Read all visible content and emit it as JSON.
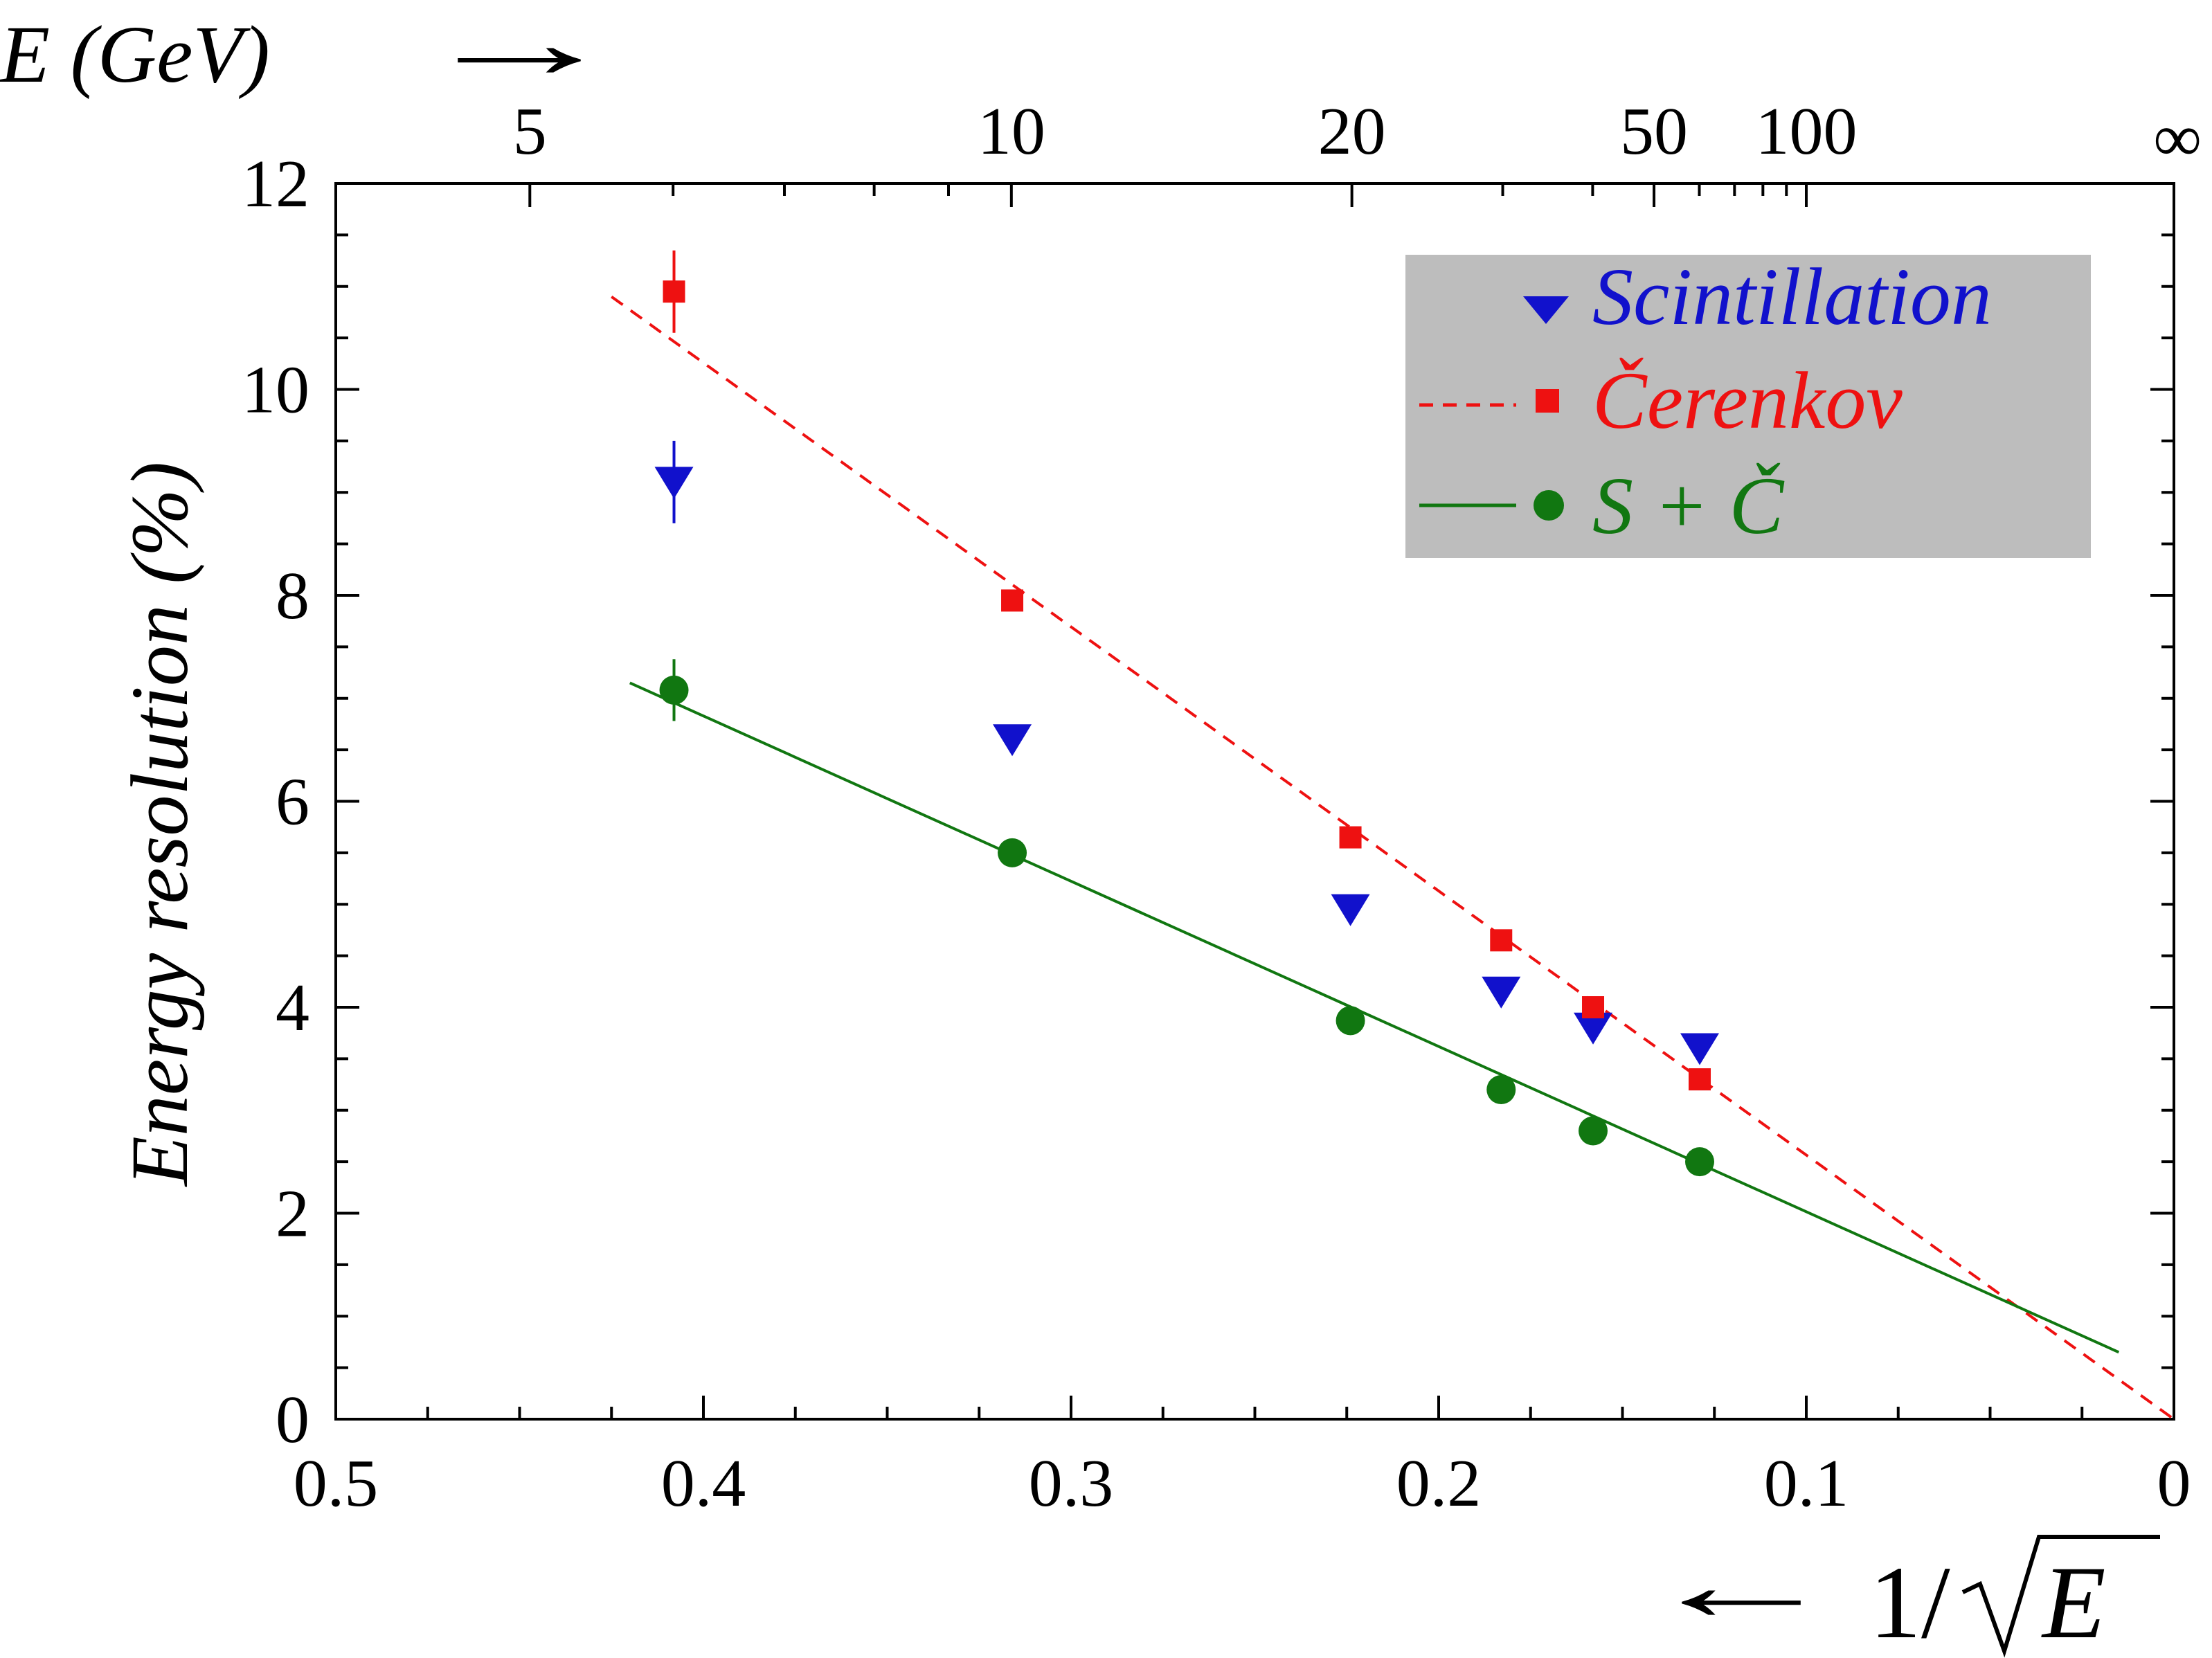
{
  "chart_data": {
    "type": "scatter",
    "title": "",
    "xlabel": "1/√E",
    "xlabel_parts": {
      "arrow": "←",
      "prefix": "1/",
      "radicand": "E"
    },
    "ylabel": "Energy resolution (%)",
    "top_axis_label": "E (GeV)",
    "top_axis_arrow": "→",
    "xlim": [
      0.5,
      0
    ],
    "ylim": [
      0,
      12
    ],
    "x_ticks": [
      0.5,
      0.4,
      0.3,
      0.2,
      0.1,
      0
    ],
    "x_tick_labels": [
      "0.5",
      "0.4",
      "0.3",
      "0.2",
      "0.1",
      "0"
    ],
    "y_ticks": [
      0,
      2,
      4,
      6,
      8,
      10,
      12
    ],
    "y_tick_labels": [
      "0",
      "2",
      "4",
      "6",
      "8",
      "10",
      "12"
    ],
    "top_ticks": [
      {
        "label": "5",
        "energy": 5
      },
      {
        "label": "10",
        "energy": 10
      },
      {
        "label": "20",
        "energy": 20
      },
      {
        "label": "50",
        "energy": 50
      },
      {
        "label": "100",
        "energy": 100
      },
      {
        "label": "∞",
        "energy": null
      }
    ],
    "top_minor_energies": [
      6,
      7,
      8,
      9,
      30,
      40,
      60,
      70,
      80,
      90
    ],
    "legend_position": "top-right",
    "series": [
      {
        "name": "Scintillation",
        "marker": "triangle-down",
        "color": "#1111cc",
        "line": null,
        "x": [
          0.408,
          0.316,
          0.224,
          0.183,
          0.158,
          0.129
        ],
        "y": [
          9.1,
          6.6,
          4.95,
          4.15,
          3.8,
          3.6
        ],
        "err": [
          0.4,
          0,
          0,
          0,
          0,
          0
        ]
      },
      {
        "name": "Čerenkov",
        "marker": "square",
        "color": "#ee1111",
        "line": {
          "style": "dashed",
          "x": [
            0.425,
            0
          ],
          "y": [
            10.9,
            0
          ]
        },
        "x": [
          0.408,
          0.316,
          0.224,
          0.183,
          0.158,
          0.129
        ],
        "y": [
          10.95,
          7.95,
          5.65,
          4.65,
          4.0,
          3.3
        ],
        "err": [
          0.4,
          0,
          0,
          0,
          0,
          0
        ]
      },
      {
        "name": "S + Č",
        "marker": "circle",
        "color": "#117711",
        "line": {
          "style": "solid",
          "x": [
            0.42,
            0.015
          ],
          "y": [
            7.15,
            0.65
          ]
        },
        "x": [
          0.408,
          0.316,
          0.224,
          0.183,
          0.158,
          0.129
        ],
        "y": [
          7.08,
          5.5,
          3.87,
          3.2,
          2.8,
          2.5
        ],
        "err": [
          0.3,
          0,
          0,
          0,
          0,
          0
        ]
      }
    ]
  }
}
